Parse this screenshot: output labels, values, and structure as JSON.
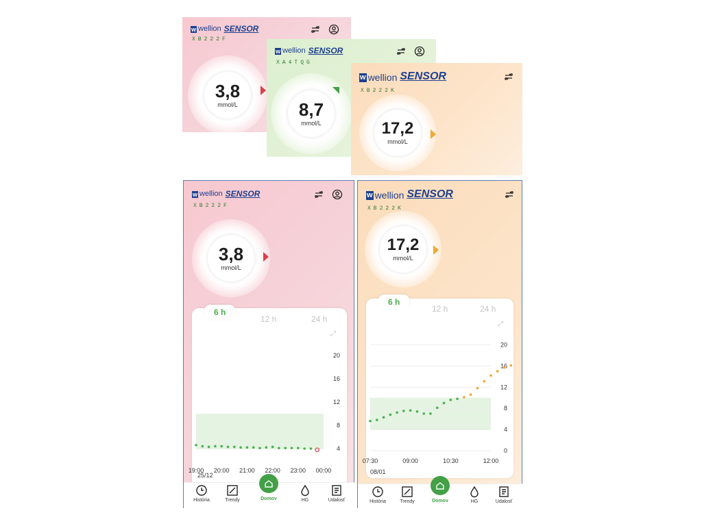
{
  "panels": {
    "top_pink": {
      "brand_mark": "w",
      "brand_wellion": "wellion",
      "brand_sensor": "SENSOR",
      "serial": "XB222F",
      "value": "3,8",
      "unit": "mmol/L"
    },
    "top_green": {
      "brand_mark": "w",
      "brand_wellion": "wellion",
      "brand_sensor": "SENSOR",
      "serial": "XA4TQG",
      "value": "8,7",
      "unit": "mmol/L"
    },
    "top_orange": {
      "brand_mark": "w",
      "brand_wellion": "wellion",
      "brand_sensor": "SENSOR",
      "serial": "XB222K",
      "value": "17,2",
      "unit": "mmol/L"
    },
    "bottom_left": {
      "brand_mark": "w",
      "brand_wellion": "wellion",
      "brand_sensor": "SENSOR",
      "serial": "XB222F",
      "value": "3,8",
      "unit": "mmol/L",
      "tabs": [
        "6 h",
        "12 h",
        "24 h"
      ],
      "date": "25/12",
      "nav": {
        "history": "História",
        "trends": "Trendy",
        "home": "Domov",
        "hg": "HG",
        "event": "Udalosť"
      }
    },
    "bottom_right": {
      "brand_mark": "w",
      "brand_wellion": "wellion",
      "brand_sensor": "SENSOR",
      "serial": "XB222K",
      "value": "17,2",
      "unit": "mmol/L",
      "tabs": [
        "6 h",
        "12 h",
        "24 h"
      ],
      "date": "08/01",
      "nav": {
        "history": "História",
        "trends": "Trendy",
        "home": "Domov",
        "hg": "HG",
        "event": "Udalosť"
      }
    }
  },
  "colors": {
    "low": "#d9414b",
    "normal": "#4caf50",
    "high": "#f0a830",
    "brand": "#1d3f8f"
  },
  "chart_data": [
    {
      "type": "scatter",
      "x": [
        "19:00",
        "19:15",
        "19:30",
        "19:45",
        "20:00",
        "20:15",
        "20:30",
        "20:45",
        "21:00",
        "21:15",
        "21:30",
        "21:45",
        "22:00",
        "22:15",
        "22:30",
        "22:45",
        "23:00",
        "23:15",
        "23:30",
        "23:45"
      ],
      "y": [
        4.6,
        4.4,
        4.3,
        4.4,
        4.4,
        4.3,
        4.3,
        4.2,
        4.2,
        4.2,
        4.1,
        4.2,
        4.3,
        4.1,
        4.1,
        4.1,
        4.1,
        4.0,
        4.0,
        3.8
      ],
      "xticks": [
        "19:00",
        "20:00",
        "21:00",
        "22:00",
        "23:00",
        "00:00"
      ],
      "yticks": [
        4,
        8,
        12,
        16,
        20
      ],
      "ylim": [
        2,
        22
      ],
      "target_range": [
        3.9,
        10
      ],
      "grid": false
    },
    {
      "type": "scatter",
      "x": [
        "07:30",
        "07:45",
        "08:00",
        "08:15",
        "08:30",
        "08:45",
        "09:00",
        "09:15",
        "09:30",
        "09:45",
        "10:00",
        "10:15",
        "10:30",
        "10:45",
        "11:00",
        "11:15",
        "11:30",
        "11:45",
        "12:00",
        "12:15",
        "12:30",
        "12:45"
      ],
      "y": [
        5.6,
        5.8,
        6.3,
        6.8,
        7.2,
        7.5,
        7.6,
        7.4,
        7.0,
        7.0,
        8.1,
        9.0,
        9.6,
        9.8,
        10.1,
        10.6,
        11.8,
        13.1,
        14.2,
        15.0,
        15.7,
        16.1
      ],
      "xticks": [
        "07:30",
        "09:00",
        "10:30",
        "12:00"
      ],
      "yticks": [
        0,
        4,
        8,
        12,
        16,
        20
      ],
      "ylim": [
        0,
        22
      ],
      "target_range": [
        3.9,
        10
      ],
      "grid": true
    }
  ]
}
